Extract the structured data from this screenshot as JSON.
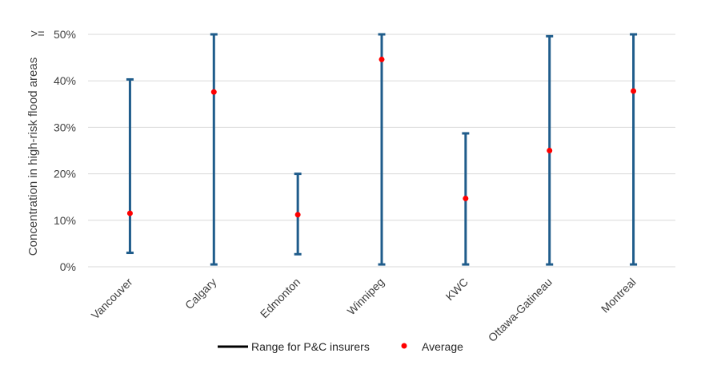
{
  "chart_data": {
    "type": "range",
    "ylabel": "Concentration in high-risk flood areas",
    "ymax_marker": ">=",
    "ylim": [
      0,
      50
    ],
    "ytick_values": [
      0,
      10,
      20,
      30,
      40,
      50
    ],
    "ytick_labels": [
      "0%",
      "10%",
      "20%",
      "30%",
      "40%",
      "50%"
    ],
    "grid": true,
    "categories": [
      "Vancouver",
      "Calgary",
      "Edmonton",
      "Winnipeg",
      "KWC",
      "Ottawa-Gatineau",
      "Montreal"
    ],
    "series": [
      {
        "name": "Range for P&C insurers",
        "low": [
          3,
          0.5,
          2.7,
          0.5,
          0.5,
          0.5,
          0.5
        ],
        "high": [
          40.3,
          50,
          20,
          50,
          28.7,
          49.6,
          50
        ]
      },
      {
        "name": "Average",
        "values": [
          11.5,
          37.6,
          11.2,
          44.6,
          14.7,
          25,
          37.8
        ]
      }
    ],
    "legend_position": "bottom",
    "colors": {
      "range": "#1f5c8b",
      "average": "#ff0000",
      "grid": "#d9d9d9",
      "text": "#404040"
    }
  }
}
